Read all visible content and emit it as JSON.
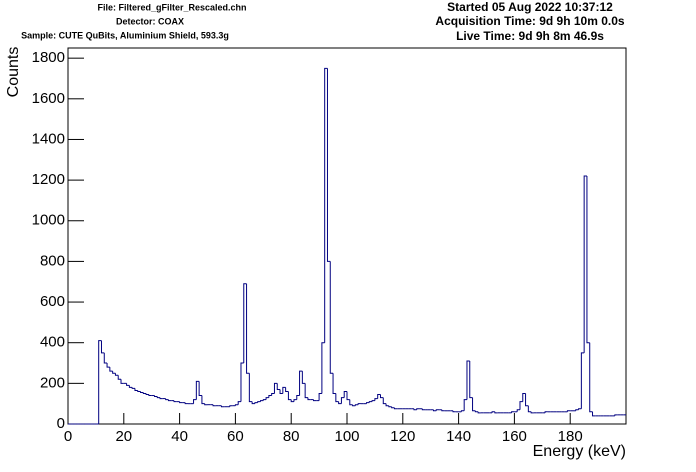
{
  "chart_data": {
    "type": "histogram",
    "header": {
      "file": "File: Filtered_gFilter_Rescaled.chn",
      "detector": "Detector: COAX",
      "sample": "Sample: CUTE QuBits, Aluminium Shield, 593.3g",
      "started": "Started 05 Aug 2022 10:37:12",
      "acquisition": "Acquisition Time: 9d 9h 10m 0.0s",
      "live": "Live Time: 9d 9h 8m 46.9s"
    },
    "x_label": "Energy (keV)",
    "y_label": "Counts",
    "color": "#000080",
    "xlim": [
      0,
      200
    ],
    "ylim": [
      0,
      1850
    ],
    "xticks": [
      0,
      20,
      40,
      60,
      80,
      100,
      120,
      140,
      160,
      180
    ],
    "yticks": [
      0,
      200,
      400,
      600,
      800,
      1000,
      1200,
      1400,
      1600,
      1800
    ],
    "bins": [
      0,
      1,
      2,
      3,
      4,
      5,
      6,
      7,
      8,
      9,
      10,
      11,
      12,
      13,
      14,
      15,
      16,
      17,
      18,
      19,
      20,
      21,
      22,
      23,
      24,
      25,
      26,
      27,
      28,
      29,
      30,
      31,
      32,
      33,
      34,
      35,
      36,
      37,
      38,
      39,
      40,
      41,
      42,
      43,
      44,
      45,
      46,
      47,
      48,
      49,
      50,
      51,
      52,
      53,
      54,
      55,
      56,
      57,
      58,
      59,
      60,
      61,
      62,
      63,
      64,
      65,
      66,
      67,
      68,
      69,
      70,
      71,
      72,
      73,
      74,
      75,
      76,
      77,
      78,
      79,
      80,
      81,
      82,
      83,
      84,
      85,
      86,
      87,
      88,
      89,
      90,
      91,
      92,
      93,
      94,
      95,
      96,
      97,
      98,
      99,
      100,
      101,
      102,
      103,
      104,
      105,
      106,
      107,
      108,
      109,
      110,
      111,
      112,
      113,
      114,
      115,
      116,
      117,
      118,
      119,
      120,
      121,
      122,
      123,
      124,
      125,
      126,
      127,
      128,
      129,
      130,
      131,
      132,
      133,
      134,
      135,
      136,
      137,
      138,
      139,
      140,
      141,
      142,
      143,
      144,
      145,
      146,
      147,
      148,
      149,
      150,
      151,
      152,
      153,
      154,
      155,
      156,
      157,
      158,
      159,
      160,
      161,
      162,
      163,
      164,
      165,
      166,
      167,
      168,
      169,
      170,
      171,
      172,
      173,
      174,
      175,
      176,
      177,
      178,
      179,
      180,
      181,
      182,
      183,
      184,
      185,
      186,
      187,
      188,
      189,
      190,
      191,
      192,
      193,
      194,
      195,
      196,
      197,
      198,
      199,
      200
    ],
    "values": [
      0,
      0,
      0,
      0,
      0,
      0,
      0,
      0,
      0,
      0,
      0,
      410,
      350,
      300,
      280,
      260,
      250,
      240,
      220,
      200,
      200,
      190,
      180,
      175,
      165,
      160,
      155,
      150,
      145,
      140,
      140,
      135,
      130,
      125,
      125,
      120,
      115,
      115,
      110,
      110,
      105,
      105,
      100,
      100,
      100,
      120,
      210,
      140,
      100,
      95,
      95,
      95,
      90,
      90,
      90,
      85,
      85,
      85,
      90,
      90,
      95,
      110,
      300,
      690,
      250,
      110,
      100,
      105,
      110,
      115,
      120,
      130,
      140,
      150,
      200,
      170,
      150,
      180,
      160,
      120,
      110,
      120,
      140,
      260,
      200,
      130,
      120,
      120,
      115,
      115,
      150,
      400,
      1750,
      800,
      250,
      150,
      110,
      100,
      130,
      160,
      120,
      95,
      90,
      95,
      100,
      100,
      100,
      105,
      110,
      115,
      125,
      145,
      130,
      100,
      90,
      85,
      80,
      75,
      75,
      75,
      75,
      75,
      75,
      75,
      70,
      75,
      75,
      70,
      70,
      70,
      70,
      65,
      70,
      70,
      65,
      65,
      65,
      65,
      60,
      60,
      60,
      65,
      120,
      310,
      130,
      65,
      60,
      55,
      55,
      55,
      55,
      55,
      60,
      55,
      55,
      55,
      55,
      55,
      55,
      60,
      60,
      70,
      110,
      150,
      90,
      60,
      55,
      55,
      55,
      55,
      55,
      60,
      60,
      60,
      60,
      60,
      60,
      60,
      60,
      65,
      65,
      65,
      70,
      75,
      350,
      1220,
      400,
      60,
      40,
      40,
      40,
      40,
      40,
      40,
      40,
      40,
      45,
      45,
      45,
      45
    ]
  }
}
